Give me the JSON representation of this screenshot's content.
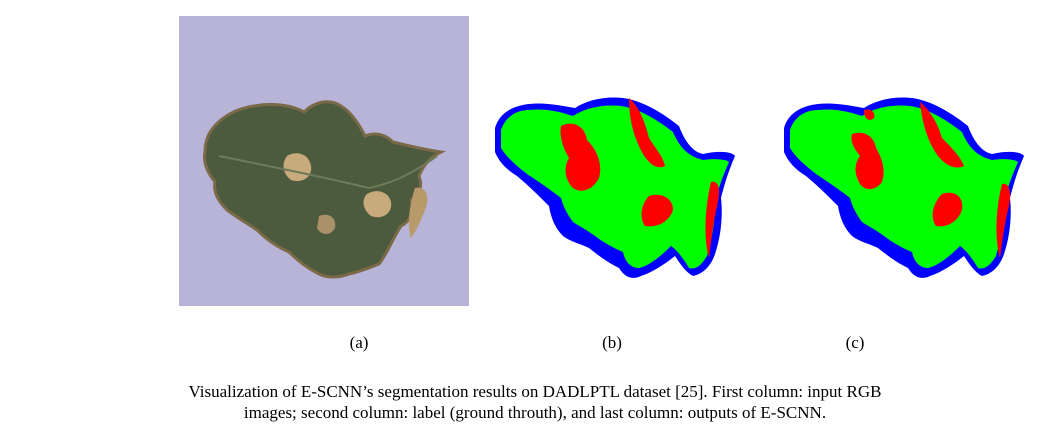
{
  "figure": {
    "subfigures": [
      {
        "label": "(a)"
      },
      {
        "label": "(b)"
      },
      {
        "label": "(c)"
      }
    ],
    "caption_line1": "Visualization of E-SCNN’s segmentation results on DADLPTL dataset [25]. First column: input RGB",
    "caption_line2": "images; second column: label (ground throuth), and last column: outputs of E-SCNN.",
    "colors": {
      "background_purple": "#b8b4d8",
      "leaf_dark": "#4c5a3e",
      "lesion_tan": "#c8ab7c",
      "healthy_green": "#00ff00",
      "disease_red": "#ff0000",
      "edge_blue": "#0000ff"
    }
  }
}
